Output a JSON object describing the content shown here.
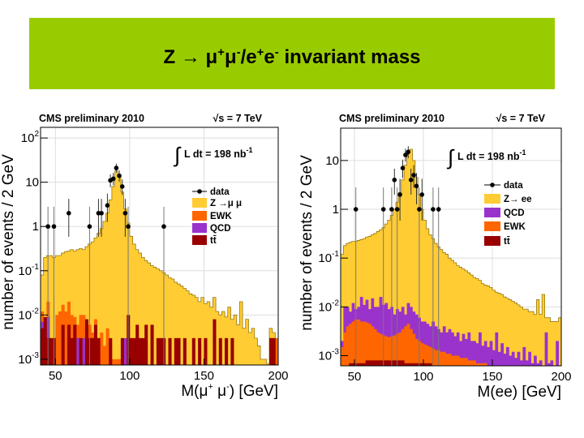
{
  "title": {
    "z": "Z",
    "arrow": "→",
    "mu": "μ",
    "plus": "+",
    "minus": "-",
    "slash": "/",
    "e": "e",
    "rest": " invariant mass"
  },
  "chart_data": [
    {
      "type": "bar",
      "header_left": "CMS preliminary 2010",
      "header_right": "√s = 7 TeV",
      "lumi": {
        "text": "L dt = 198 nb",
        "exp": "-1"
      },
      "xlabel": {
        "pre": "M(μ",
        "sup1": "+",
        "mid": " μ",
        "sup2": "-",
        "post": ") [GeV]"
      },
      "ylabel": "number of events / 2 GeV",
      "xlim": [
        40,
        200
      ],
      "ylim": [
        0.00074,
        174
      ],
      "log_y": true,
      "bin_width": 2,
      "grid": true,
      "xticks": [
        "50",
        "100",
        "150",
        "200"
      ],
      "yticks": [
        {
          "base": "10",
          "exp": "-3",
          "v": 0.001
        },
        {
          "base": "10",
          "exp": "-2",
          "v": 0.01
        },
        {
          "base": "10",
          "exp": "-1",
          "v": 0.1
        },
        {
          "base": "1",
          "exp": "",
          "v": 1
        },
        {
          "base": "10",
          "exp": "",
          "v": 10
        },
        {
          "base": "10",
          "exp": "2",
          "v": 100
        }
      ],
      "legend": [
        {
          "label": "data",
          "kind": "point"
        },
        {
          "label": "Z →μ μ",
          "kind": "fill",
          "color": "#ffcc33"
        },
        {
          "label": "EWK",
          "kind": "fill",
          "color": "#ff6600"
        },
        {
          "label": "QCD",
          "kind": "fill",
          "color": "#9933cc"
        },
        {
          "label": "tt̄",
          "kind": "fill",
          "color": "#990000"
        }
      ],
      "legend_placement": "right",
      "series": [
        {
          "name": "Z →μ μ",
          "color": "#ffcc33",
          "values": [
            0.08,
            0.2,
            0.22,
            0.22,
            0.2,
            0.22,
            0.22,
            0.25,
            0.27,
            0.28,
            0.3,
            0.28,
            0.3,
            0.32,
            0.3,
            0.35,
            0.4,
            0.45,
            0.55,
            0.7,
            0.9,
            1.3,
            2,
            4,
            8,
            18,
            14,
            6,
            2.5,
            1.2,
            0.6,
            0.4,
            0.3,
            0.25,
            0.2,
            0.17,
            0.15,
            0.13,
            0.12,
            0.11,
            0.1,
            0.09,
            0.08,
            0.07,
            0.065,
            0.055,
            0.05,
            0.045,
            0.04,
            0.035,
            0.03,
            0.028,
            0.025,
            0.02,
            0.025,
            0.018,
            0.02,
            0.015,
            0.025,
            0.012,
            0.01,
            0.012,
            0.009,
            0.015,
            0.008,
            0.01,
            0.006,
            0.02,
            0.005,
            0.008,
            0.004,
            0.005,
            0.003,
            0.002,
            0.001,
            0.001,
            0.0008,
            0.005,
            0.004,
            0.002
          ]
        },
        {
          "name": "EWK",
          "color": "#ff6600",
          "values": [
            0.012,
            0.003,
            0.02,
            0.003,
            0.003,
            0.01,
            0.012,
            0.017,
            0.012,
            0.02,
            0.01,
            0.009,
            0.006,
            0.01,
            0.01,
            0.008,
            0.006,
            0.004,
            0.008,
            0.003,
            0.004,
            0.002,
            0.005,
            0.002,
            0.001,
            0.001,
            0.001,
            0.001,
            0.002,
            0.001,
            0,
            0,
            0,
            0,
            0,
            0,
            0,
            0,
            0,
            0,
            0,
            0,
            0,
            0,
            0,
            0.001,
            0,
            0,
            0,
            0,
            0,
            0,
            0,
            0,
            0,
            0,
            0,
            0,
            0,
            0,
            0,
            0,
            0,
            0,
            0,
            0,
            0,
            0,
            0,
            0,
            0,
            0,
            0,
            0,
            0,
            0,
            0,
            0.003,
            0.002,
            0.003
          ]
        },
        {
          "name": "QCD",
          "color": "#9933cc",
          "values": [
            0.007,
            0.001,
            0.009,
            0,
            0,
            0,
            0,
            0,
            0,
            0,
            0,
            0,
            0.003,
            0,
            0.003,
            0,
            0,
            0.003,
            0.003,
            0,
            0,
            0,
            0,
            0,
            0,
            0,
            0,
            0,
            0.003,
            0,
            0,
            0,
            0,
            0,
            0,
            0,
            0,
            0,
            0,
            0,
            0,
            0,
            0,
            0,
            0,
            0,
            0,
            0,
            0,
            0,
            0,
            0,
            0,
            0,
            0,
            0,
            0,
            0,
            0,
            0,
            0,
            0,
            0,
            0,
            0,
            0,
            0,
            0,
            0,
            0,
            0,
            0,
            0,
            0,
            0,
            0,
            0,
            0,
            0,
            0
          ]
        },
        {
          "name": "tt̄",
          "color": "#990000",
          "values": [
            0.005,
            0.009,
            0.003,
            0.003,
            0.003,
            0,
            0,
            0.006,
            0,
            0.006,
            0.003,
            0.006,
            0,
            0.003,
            0,
            0.008,
            0.003,
            0.003,
            0.006,
            0.003,
            0,
            0,
            0,
            0.003,
            0,
            0,
            0,
            0.003,
            0,
            0.01,
            0.003,
            0.003,
            0.006,
            0.003,
            0.003,
            0.006,
            0,
            0.006,
            0,
            0.003,
            0.003,
            0.003,
            0,
            0.003,
            0,
            0.003,
            0.003,
            0,
            0.003,
            0,
            0,
            0.003,
            0,
            0.003,
            0,
            0.003,
            0,
            0,
            0.008,
            0,
            0.003,
            0,
            0.003,
            0,
            0.003,
            0,
            0,
            0,
            0,
            0,
            0,
            0,
            0,
            0,
            0,
            0,
            0,
            0.003,
            0.003,
            0
          ]
        }
      ],
      "data_points": {
        "x": [
          45,
          49,
          59,
          73,
          79,
          81,
          85,
          87,
          89,
          91,
          93,
          95,
          97,
          99,
          123
        ],
        "y": [
          1,
          1,
          2,
          1,
          2,
          2,
          3,
          11,
          12,
          21,
          14,
          8,
          2,
          1,
          1
        ]
      }
    },
    {
      "type": "bar",
      "header_left": "CMS preliminary 2010",
      "header_right": "√s = 7 TeV",
      "lumi": {
        "text": "L dt = 198 nb",
        "exp": "-1"
      },
      "xlabel": {
        "pre": "M(ee) [GeV]",
        "sup1": "",
        "mid": "",
        "sup2": "",
        "post": ""
      },
      "ylabel": "number of events / 2 GeV",
      "xlim": [
        40,
        200
      ],
      "ylim": [
        0.00062,
        46
      ],
      "log_y": true,
      "bin_width": 2,
      "grid": true,
      "xticks": [
        "50",
        "100",
        "150",
        "200"
      ],
      "yticks": [
        {
          "base": "10",
          "exp": "-3",
          "v": 0.001
        },
        {
          "base": "10",
          "exp": "-2",
          "v": 0.01
        },
        {
          "base": "10",
          "exp": "-1",
          "v": 0.1
        },
        {
          "base": "1",
          "exp": "",
          "v": 1
        },
        {
          "base": "10",
          "exp": "",
          "v": 10
        }
      ],
      "legend": [
        {
          "label": "data",
          "kind": "point"
        },
        {
          "label": "Z→ ee",
          "kind": "fill",
          "color": "#ffcc33"
        },
        {
          "label": "QCD",
          "kind": "fill",
          "color": "#9933cc"
        },
        {
          "label": "EWK",
          "kind": "fill",
          "color": "#ff6600"
        },
        {
          "label": "tt̄",
          "kind": "fill",
          "color": "#990000"
        }
      ],
      "legend_placement": "right",
      "series": [
        {
          "name": "Z→ ee",
          "color": "#ffcc33",
          "values": [
            0.12,
            0.18,
            0.2,
            0.21,
            0.22,
            0.22,
            0.23,
            0.24,
            0.25,
            0.27,
            0.28,
            0.3,
            0.32,
            0.35,
            0.38,
            0.42,
            0.5,
            0.6,
            0.75,
            1.0,
            1.4,
            2.2,
            4,
            8,
            14,
            17,
            10,
            4.5,
            2,
            1,
            0.6,
            0.4,
            0.3,
            0.25,
            0.2,
            0.17,
            0.15,
            0.13,
            0.12,
            0.1,
            0.09,
            0.08,
            0.07,
            0.065,
            0.06,
            0.055,
            0.05,
            0.045,
            0.04,
            0.038,
            0.035,
            0.03,
            0.028,
            0.027,
            0.025,
            0.022,
            0.02,
            0.019,
            0.018,
            0.016,
            0.015,
            0.014,
            0.013,
            0.012,
            0.011,
            0.01,
            0.009,
            0.009,
            0.008,
            0.008,
            0.007,
            0.014,
            0.007,
            0.018,
            0.006,
            0.006,
            0.005,
            0.005,
            0.005,
            0.006
          ]
        },
        {
          "name": "QCD",
          "color": "#9933cc",
          "values": [
            0.002,
            0.01,
            0.01,
            0.008,
            0.012,
            0.009,
            0.01,
            0.016,
            0.011,
            0.014,
            0.009,
            0.015,
            0.01,
            0.01,
            0.016,
            0.011,
            0.012,
            0.009,
            0.01,
            0.007,
            0.009,
            0.008,
            0.01,
            0.007,
            0.012,
            0.01,
            0.008,
            0.007,
            0.006,
            0.005,
            0.005,
            0.0045,
            0.004,
            0.005,
            0.004,
            0.0035,
            0.003,
            0.004,
            0.003,
            0.0035,
            0.003,
            0.0025,
            0.003,
            0.002,
            0.0028,
            0.0022,
            0.003,
            0.002,
            0.002,
            0.0018,
            0.003,
            0.0016,
            0.002,
            0.0015,
            0.002,
            0.0013,
            0.003,
            0.0012,
            0.0018,
            0.0011,
            0.0015,
            0.001,
            0.0012,
            0.0009,
            0.0012,
            0.0008,
            0.0015,
            0.0008,
            0.0012,
            0.0007,
            0.001,
            0.0007,
            0.0008,
            0.0006,
            0.003,
            0.0007,
            0.0008,
            0.0006,
            0.002,
            0.0005
          ]
        },
        {
          "name": "EWK",
          "color": "#ff6600",
          "values": [
            0.0015,
            0.003,
            0.004,
            0.0045,
            0.005,
            0.0055,
            0.0055,
            0.005,
            0.005,
            0.0048,
            0.0045,
            0.004,
            0.0035,
            0.003,
            0.0028,
            0.0026,
            0.0025,
            0.0024,
            0.0025,
            0.0026,
            0.0028,
            0.003,
            0.0035,
            0.004,
            0.0045,
            0.0035,
            0.0028,
            0.0022,
            0.002,
            0.0018,
            0.0017,
            0.0016,
            0.0015,
            0.0014,
            0.0013,
            0.0013,
            0.0012,
            0.0012,
            0.0011,
            0.0011,
            0.001,
            0.001,
            0.001,
            0.0009,
            0.0009,
            0.0009,
            0.0008,
            0.0008,
            0.0008,
            0.0007,
            0.0007,
            0.0007,
            0.0007,
            0.0006,
            0.0006,
            0.0006,
            0.0006,
            0.0006,
            0.0006,
            0.0006,
            0.0005,
            0.0005,
            0.0005,
            0.0005,
            0.0005,
            0.0005,
            0.0005,
            0.0005,
            0.0005,
            0.0005,
            0.0005,
            0.0005,
            0.0005,
            0.0005,
            0.0005,
            0.0005,
            0.0005,
            0.0005,
            0.0005,
            0.0005
          ]
        },
        {
          "name": "tt̄",
          "color": "#990000",
          "values": [
            0.0005,
            0.0006,
            0.0006,
            0.0007,
            0.0007,
            0.0007,
            0.0007,
            0.0007,
            0.0007,
            0.0008,
            0.0008,
            0.0008,
            0.0008,
            0.0008,
            0.0008,
            0.0008,
            0.0008,
            0.0008,
            0.0008,
            0.0008,
            0.0008,
            0.0008,
            0.0008,
            0.0007,
            0.0007,
            0.0007,
            0.0007,
            0.0007,
            0.0007,
            0.0007,
            0.0007,
            0.0007,
            0.0007,
            0.0006,
            0.0006,
            0.0006,
            0.0006,
            0.0006,
            0.0006,
            0.0006,
            0.0006,
            0.0006,
            0.0006,
            0.0006,
            0.0006,
            0.0005,
            0.0005,
            0.0005,
            0.0005,
            0.0005,
            0.0005,
            0.0005,
            0.0005,
            0.0005,
            0.0005,
            0.0005,
            0.0005,
            0.0005,
            0.0005,
            0.0005,
            0.0005,
            0.0005,
            0.0005,
            0.0005,
            0.0005,
            0.0005,
            0.0005,
            0.0005,
            0.0005,
            0.0005,
            0.0005,
            0.0005,
            0.0005,
            0.0005,
            0.0005,
            0.0005,
            0.0005,
            0.0005,
            0.0005,
            0.0005
          ]
        }
      ],
      "data_points": {
        "x": [
          51,
          71,
          77,
          79,
          81,
          83,
          85,
          87,
          89,
          91,
          93,
          95,
          97,
          99,
          107,
          111
        ],
        "y": [
          1,
          1,
          1,
          4,
          1,
          2,
          7,
          13,
          15,
          4,
          5,
          3,
          1,
          2,
          1,
          1
        ]
      }
    }
  ]
}
